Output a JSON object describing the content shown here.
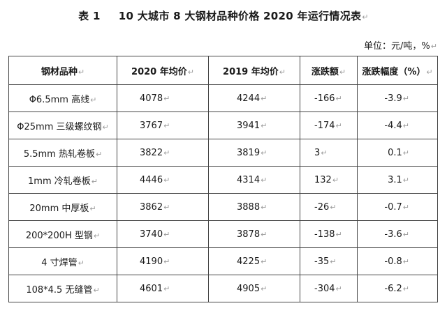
{
  "title": {
    "number": "表 1",
    "text": "10 大城市 8 大钢材品种价格 2020 年运行情况表"
  },
  "unit": "单位：元/吨，%",
  "para_mark": "↵",
  "table": {
    "headers": [
      "钢材品种",
      "2020 年均价",
      "2019 年均价",
      "涨跌额",
      "涨跌幅度（%）"
    ],
    "rows": [
      {
        "name": "Φ6.5mm 高线",
        "avg2020": "4078",
        "avg2019": "4244",
        "change": "-166",
        "pct": "-3.9"
      },
      {
        "name": "Φ25mm 三级螺纹钢",
        "avg2020": "3767",
        "avg2019": "3941",
        "change": "-174",
        "pct": "-4.4"
      },
      {
        "name": "5.5mm 热轧卷板",
        "avg2020": "3822",
        "avg2019": "3819",
        "change": "3",
        "pct": "0.1"
      },
      {
        "name": "1mm 冷轧卷板",
        "avg2020": "4446",
        "avg2019": "4314",
        "change": "132",
        "pct": "3.1"
      },
      {
        "name": "20mm 中厚板",
        "avg2020": "3862",
        "avg2019": "3888",
        "change": "-26",
        "pct": "-0.7"
      },
      {
        "name": "200*200H 型钢",
        "avg2020": "3740",
        "avg2019": "3878",
        "change": "-138",
        "pct": "-3.6"
      },
      {
        "name": "4 寸焊管",
        "avg2020": "4190",
        "avg2019": "4225",
        "change": "-35",
        "pct": "-0.8"
      },
      {
        "name": "108*4.5 无缝管",
        "avg2020": "4601",
        "avg2019": "4905",
        "change": "-304",
        "pct": "-6.2"
      }
    ]
  }
}
